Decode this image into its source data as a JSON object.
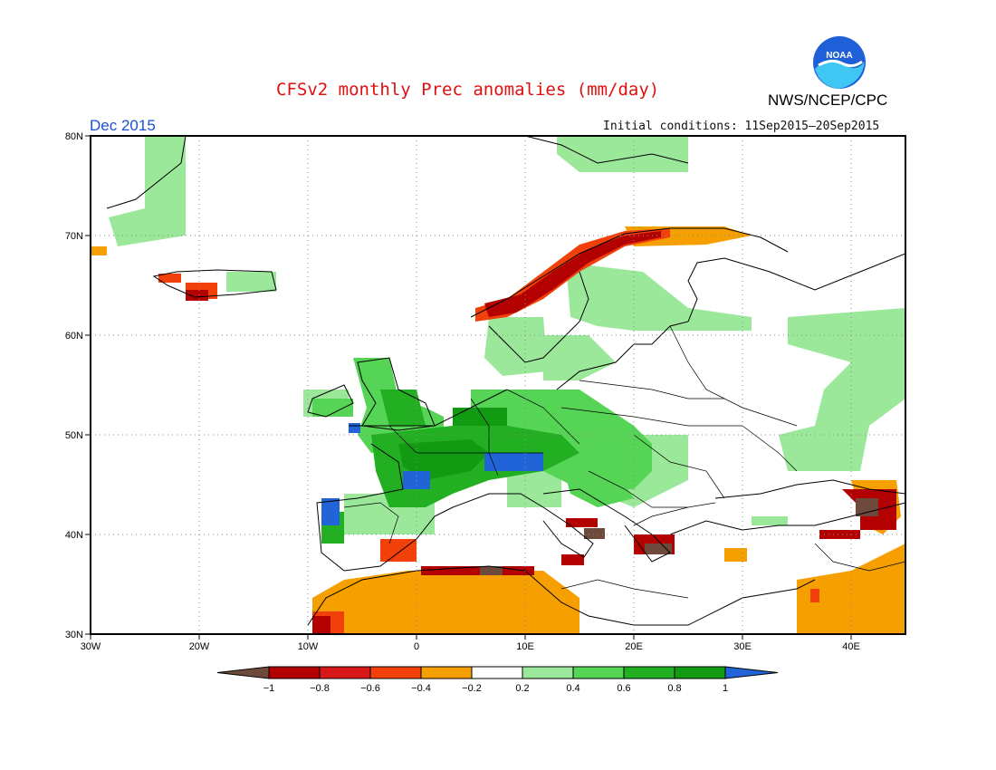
{
  "header": {
    "title": "CFSv2 monthly Prec anomalies (mm/day)",
    "agency": "NWS/NCEP/CPC",
    "logo_text": "NOAA",
    "month": "Dec 2015",
    "initial_conditions": "Initial conditions: 11Sep2015–20Sep2015"
  },
  "axes": {
    "lat_labels": [
      "80N",
      "70N",
      "60N",
      "50N",
      "40N",
      "30N"
    ],
    "lon_labels": [
      "30W",
      "20W",
      "10W",
      "0",
      "10E",
      "20E",
      "30E",
      "40E"
    ]
  },
  "legend": {
    "tick_labels": [
      "−1",
      "−0.8",
      "−0.6",
      "−0.4",
      "−0.2",
      "0.2",
      "0.4",
      "0.6",
      "0.8",
      "1"
    ],
    "colors": [
      "#6e4a3c",
      "#b30000",
      "#d81818",
      "#f2400a",
      "#f5a000",
      "#ffffff",
      "#9be89b",
      "#55d455",
      "#22b022",
      "#129a12",
      "#2164d8"
    ]
  },
  "anomaly_regions": {
    "green": [
      "France",
      "Germany",
      "Alps",
      "British Isles",
      "Scandinavia",
      "Balkans",
      "Iberian northwest",
      "Western Russia"
    ],
    "blue": [
      "Northern Portugal",
      "Bay of Biscay coast",
      "Alps"
    ],
    "red_orange": [
      "Norwegian coast",
      "North Africa",
      "Southern Spain",
      "Southern Italy",
      "Greece",
      "Eastern Turkey",
      "Middle East"
    ]
  }
}
